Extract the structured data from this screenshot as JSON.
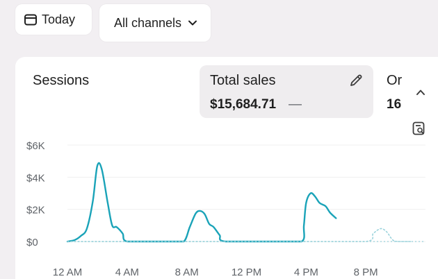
{
  "filters": {
    "date_label": "Today",
    "channel_label": "All channels"
  },
  "metrics": {
    "sessions_label": "Sessions",
    "total_sales_label": "Total sales",
    "total_sales_value": "$15,684.71",
    "total_sales_change": "—",
    "orders_label_partial": "Or",
    "orders_value_partial": "16"
  },
  "chart_data": {
    "type": "line",
    "y_ticks": [
      "$6K",
      "$4K",
      "$2K",
      "$0"
    ],
    "x_ticks": [
      "12 AM",
      "4 AM",
      "8 AM",
      "12 PM",
      "4 PM",
      "8 PM"
    ],
    "ylim": [
      0,
      6000
    ],
    "xlim": [
      0,
      24
    ],
    "grid": true,
    "series": [
      {
        "color": "#1aa3b8",
        "style": "solid",
        "points": [
          [
            0,
            0
          ],
          [
            0.5,
            100
          ],
          [
            0.9,
            350
          ],
          [
            1.3,
            800
          ],
          [
            1.7,
            2500
          ],
          [
            2.0,
            4700
          ],
          [
            2.3,
            4500
          ],
          [
            2.7,
            2400
          ],
          [
            3.0,
            1000
          ],
          [
            3.3,
            900
          ],
          [
            3.7,
            500
          ],
          [
            4.0,
            0
          ],
          [
            6.0,
            0
          ],
          [
            7.0,
            0
          ],
          [
            7.8,
            0
          ],
          [
            8.2,
            900
          ],
          [
            8.6,
            1750
          ],
          [
            8.9,
            1900
          ],
          [
            9.2,
            1700
          ],
          [
            9.5,
            1100
          ],
          [
            9.8,
            900
          ],
          [
            10.2,
            400
          ],
          [
            10.6,
            0
          ],
          [
            14.0,
            0
          ],
          [
            15.7,
            0
          ],
          [
            15.85,
            1000
          ],
          [
            16.0,
            2400
          ],
          [
            16.3,
            3000
          ],
          [
            16.6,
            2800
          ],
          [
            16.9,
            2400
          ],
          [
            17.3,
            2200
          ],
          [
            17.6,
            1800
          ],
          [
            18.0,
            1450
          ]
        ]
      },
      {
        "color": "#9bd3dc",
        "style": "dotted",
        "points": [
          [
            0,
            0
          ],
          [
            4,
            0
          ],
          [
            8,
            0
          ],
          [
            12,
            0
          ],
          [
            16,
            0
          ],
          [
            20,
            0
          ],
          [
            20.5,
            500
          ],
          [
            21.0,
            800
          ],
          [
            21.4,
            600
          ],
          [
            21.8,
            100
          ],
          [
            22.2,
            0
          ],
          [
            23.0,
            0
          ]
        ]
      }
    ]
  },
  "icons": {
    "calendar": "calendar-icon",
    "chevron": "chevron-down-icon",
    "edit": "pencil-icon",
    "collapse": "chevron-up-icon",
    "report": "report-search-icon"
  }
}
